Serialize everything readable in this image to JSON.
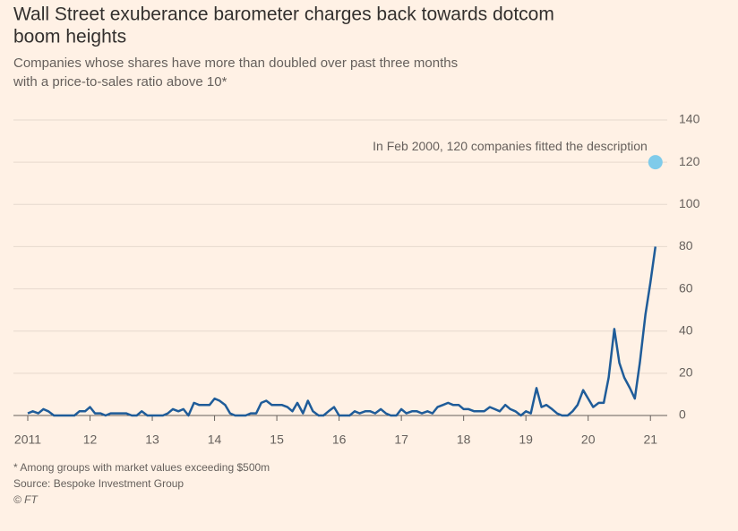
{
  "chart_data": {
    "type": "line",
    "title": [
      "Wall Street exuberance barometer charges back towards dotcom",
      "boom heights"
    ],
    "subtitle": [
      "Companies whose shares have more than doubled over past three months",
      "with a price-to-sales ratio above 10*"
    ],
    "notes": [
      "* Among groups with market values exceeding $500m",
      "Source: Bespoke Investment Group",
      "© FT"
    ],
    "xlim": [
      2010.77,
      2021.27
    ],
    "xticks": [
      {
        "value": 2011,
        "label": "2011"
      },
      2012,
      2013,
      2014,
      2015,
      2016,
      2017,
      2018,
      2019,
      2020,
      2021
    ],
    "xtick_labels": [
      "2011",
      "12",
      "13",
      "14",
      "15",
      "16",
      "17",
      "18",
      "19",
      "20",
      "21"
    ],
    "ylim": [
      0,
      140
    ],
    "yticks": [
      0,
      20,
      40,
      60,
      80,
      100,
      120,
      140
    ],
    "grid": true,
    "x": [
      2011,
      2011.08,
      2011.17,
      2011.25,
      2011.33,
      2011.42,
      2011.5,
      2011.58,
      2011.67,
      2011.75,
      2011.83,
      2011.92,
      2012,
      2012.08,
      2012.17,
      2012.25,
      2012.33,
      2012.42,
      2012.5,
      2012.58,
      2012.67,
      2012.75,
      2012.83,
      2012.92,
      2013,
      2013.08,
      2013.17,
      2013.25,
      2013.33,
      2013.42,
      2013.5,
      2013.58,
      2013.67,
      2013.75,
      2013.83,
      2013.92,
      2014,
      2014.08,
      2014.17,
      2014.25,
      2014.33,
      2014.42,
      2014.5,
      2014.58,
      2014.67,
      2014.75,
      2014.83,
      2014.92,
      2015,
      2015.08,
      2015.17,
      2015.25,
      2015.33,
      2015.42,
      2015.5,
      2015.58,
      2015.67,
      2015.75,
      2015.83,
      2015.92,
      2016,
      2016.08,
      2016.17,
      2016.25,
      2016.33,
      2016.42,
      2016.5,
      2016.58,
      2016.67,
      2016.75,
      2016.83,
      2016.92,
      2017,
      2017.08,
      2017.17,
      2017.25,
      2017.33,
      2017.42,
      2017.5,
      2017.58,
      2017.67,
      2017.75,
      2017.83,
      2017.92,
      2018,
      2018.08,
      2018.17,
      2018.25,
      2018.33,
      2018.42,
      2018.5,
      2018.58,
      2018.67,
      2018.75,
      2018.83,
      2018.92,
      2019,
      2019.08,
      2019.17,
      2019.25,
      2019.33,
      2019.42,
      2019.5,
      2019.58,
      2019.67,
      2019.75,
      2019.83,
      2019.92,
      2020,
      2020.08,
      2020.17,
      2020.25,
      2020.33,
      2020.42,
      2020.5,
      2020.58,
      2020.67,
      2020.75,
      2020.83,
      2020.92,
      2021,
      2021.08
    ],
    "series": [
      {
        "color": "#1f5c99",
        "values": [
          1,
          2,
          1,
          3,
          2,
          0,
          0,
          0,
          0,
          0,
          2,
          2,
          4,
          1,
          1,
          0,
          1,
          1,
          1,
          1,
          0,
          0,
          2,
          0,
          0,
          0,
          0,
          1,
          3,
          2,
          3,
          0,
          6,
          5,
          5,
          5,
          8,
          7,
          5,
          1,
          0,
          0,
          0,
          1,
          1,
          6,
          7,
          5,
          5,
          5,
          4,
          2,
          6,
          1,
          7,
          2,
          0,
          0,
          2,
          4,
          0,
          0,
          0,
          2,
          1,
          2,
          2,
          1,
          3,
          1,
          0,
          0,
          3,
          1,
          2,
          2,
          1,
          2,
          1,
          4,
          5,
          6,
          5,
          5,
          3,
          3,
          2,
          2,
          2,
          4,
          3,
          2,
          5,
          3,
          2,
          0,
          2,
          1,
          13,
          4,
          5,
          3,
          1,
          0,
          0,
          2,
          5,
          12,
          8,
          4,
          6,
          6,
          18,
          41,
          25,
          18,
          13,
          8,
          25,
          48,
          63,
          80
        ]
      }
    ],
    "highlight": {
      "label": "In Feb 2000, 120 companies fitted the description",
      "x": 2021.08,
      "value": 120,
      "color": "#7fcbea"
    }
  }
}
